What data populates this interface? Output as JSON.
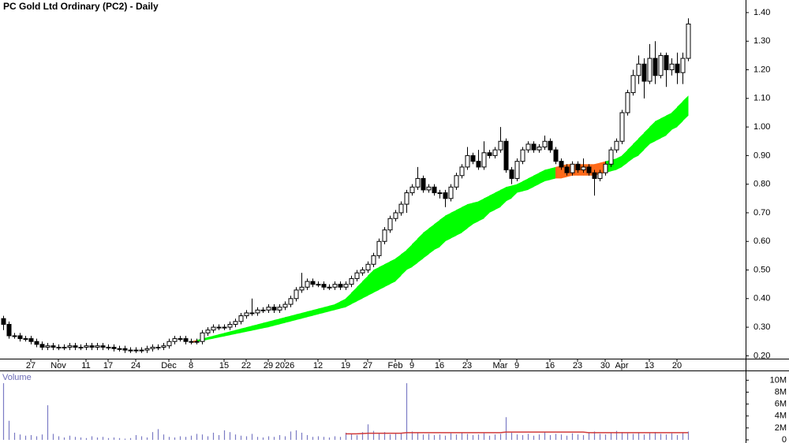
{
  "chart_data": {
    "type": "candlestick",
    "title": "PC Gold Ltd Ordinary (PC2) - Daily",
    "categories": [
      null,
      null,
      null,
      null,
      null,
      "27",
      null,
      null,
      null,
      null,
      "Nov",
      null,
      null,
      null,
      null,
      "11",
      null,
      null,
      null,
      "17",
      null,
      null,
      null,
      null,
      "24",
      null,
      null,
      null,
      null,
      null,
      "Dec",
      null,
      null,
      null,
      "8",
      null,
      null,
      null,
      null,
      null,
      "15",
      null,
      null,
      null,
      "22",
      null,
      null,
      null,
      "29",
      null,
      null,
      "2026",
      null,
      null,
      null,
      null,
      null,
      "12",
      null,
      null,
      null,
      null,
      "19",
      null,
      null,
      null,
      "27",
      null,
      null,
      null,
      null,
      "Feb",
      null,
      null,
      "9",
      null,
      null,
      null,
      null,
      "16",
      null,
      null,
      null,
      null,
      "23",
      null,
      null,
      null,
      null,
      null,
      "Mar",
      null,
      null,
      "9",
      null,
      null,
      null,
      null,
      null,
      "16",
      null,
      null,
      null,
      null,
      "23",
      null,
      null,
      null,
      null,
      "30",
      null,
      null,
      "Apr",
      null,
      null,
      null,
      null,
      "13",
      null,
      null,
      null,
      null,
      "20",
      null,
      null
    ],
    "open": [
      0.33,
      0.31,
      0.27,
      0.27,
      0.26,
      0.26,
      0.25,
      0.24,
      0.23,
      0.235,
      0.23,
      0.23,
      0.23,
      0.235,
      0.23,
      0.23,
      0.235,
      0.23,
      0.235,
      0.23,
      0.23,
      0.225,
      0.225,
      0.22,
      0.22,
      0.22,
      0.22,
      0.225,
      0.23,
      0.23,
      0.235,
      0.25,
      0.26,
      0.26,
      0.25,
      0.25,
      0.25,
      0.28,
      0.29,
      0.3,
      0.3,
      0.3,
      0.31,
      0.32,
      0.34,
      0.35,
      0.35,
      0.36,
      0.36,
      0.37,
      0.36,
      0.37,
      0.38,
      0.4,
      0.43,
      0.44,
      0.46,
      0.45,
      0.45,
      0.44,
      0.44,
      0.45,
      0.44,
      0.45,
      0.47,
      0.49,
      0.5,
      0.52,
      0.55,
      0.6,
      0.64,
      0.68,
      0.7,
      0.73,
      0.77,
      0.79,
      0.82,
      0.78,
      0.79,
      0.77,
      0.77,
      0.75,
      0.79,
      0.83,
      0.86,
      0.9,
      0.88,
      0.86,
      0.91,
      0.9,
      0.92,
      0.95,
      0.85,
      0.82,
      0.88,
      0.92,
      0.94,
      0.92,
      0.93,
      0.95,
      0.92,
      0.88,
      0.86,
      0.84,
      0.87,
      0.85,
      0.86,
      0.84,
      0.82,
      0.84,
      0.87,
      0.92,
      0.95,
      1.05,
      1.12,
      1.18,
      1.22,
      1.16,
      1.24,
      1.18,
      1.25,
      1.2,
      1.22,
      1.19,
      1.24
    ],
    "high": [
      0.34,
      0.32,
      0.28,
      0.28,
      0.27,
      0.27,
      0.26,
      0.25,
      0.245,
      0.245,
      0.24,
      0.24,
      0.245,
      0.245,
      0.24,
      0.245,
      0.245,
      0.245,
      0.245,
      0.24,
      0.24,
      0.235,
      0.235,
      0.23,
      0.23,
      0.23,
      0.235,
      0.24,
      0.24,
      0.245,
      0.26,
      0.27,
      0.27,
      0.27,
      0.26,
      0.26,
      0.29,
      0.3,
      0.31,
      0.31,
      0.31,
      0.32,
      0.33,
      0.35,
      0.36,
      0.4,
      0.37,
      0.37,
      0.38,
      0.38,
      0.38,
      0.39,
      0.41,
      0.44,
      0.49,
      0.47,
      0.47,
      0.46,
      0.46,
      0.45,
      0.46,
      0.46,
      0.46,
      0.48,
      0.5,
      0.51,
      0.53,
      0.56,
      0.61,
      0.65,
      0.69,
      0.71,
      0.74,
      0.78,
      0.8,
      0.86,
      0.83,
      0.8,
      0.8,
      0.78,
      0.78,
      0.8,
      0.84,
      0.87,
      0.93,
      0.91,
      0.92,
      0.95,
      0.92,
      0.93,
      1.0,
      0.96,
      0.86,
      0.89,
      0.93,
      0.95,
      0.95,
      0.94,
      0.97,
      0.96,
      0.93,
      0.89,
      0.87,
      0.88,
      0.88,
      0.89,
      0.87,
      0.85,
      0.85,
      0.88,
      0.93,
      0.96,
      1.06,
      1.13,
      1.2,
      1.25,
      1.24,
      1.29,
      1.3,
      1.26,
      1.26,
      1.24,
      1.26,
      1.26,
      1.38
    ],
    "low": [
      0.29,
      0.26,
      0.26,
      0.25,
      0.25,
      0.24,
      0.23,
      0.22,
      0.22,
      0.22,
      0.22,
      0.22,
      0.22,
      0.22,
      0.22,
      0.22,
      0.22,
      0.22,
      0.22,
      0.22,
      0.215,
      0.215,
      0.21,
      0.21,
      0.21,
      0.21,
      0.21,
      0.215,
      0.22,
      0.22,
      0.225,
      0.24,
      0.25,
      0.24,
      0.24,
      0.24,
      0.24,
      0.27,
      0.28,
      0.29,
      0.29,
      0.29,
      0.3,
      0.31,
      0.33,
      0.34,
      0.34,
      0.35,
      0.35,
      0.35,
      0.35,
      0.36,
      0.37,
      0.39,
      0.42,
      0.43,
      0.44,
      0.44,
      0.43,
      0.43,
      0.43,
      0.43,
      0.43,
      0.44,
      0.46,
      0.48,
      0.49,
      0.51,
      0.54,
      0.59,
      0.63,
      0.67,
      0.69,
      0.7,
      0.76,
      0.78,
      0.77,
      0.77,
      0.76,
      0.75,
      0.72,
      0.74,
      0.78,
      0.82,
      0.85,
      0.87,
      0.85,
      0.85,
      0.89,
      0.89,
      0.91,
      0.84,
      0.8,
      0.81,
      0.87,
      0.91,
      0.91,
      0.91,
      0.92,
      0.91,
      0.87,
      0.85,
      0.83,
      0.83,
      0.84,
      0.84,
      0.83,
      0.76,
      0.81,
      0.83,
      0.86,
      0.91,
      0.94,
      1.04,
      1.11,
      1.15,
      1.1,
      1.15,
      1.15,
      1.17,
      1.14,
      1.18,
      1.15,
      1.15,
      1.23
    ],
    "close": [
      0.31,
      0.27,
      0.27,
      0.26,
      0.26,
      0.25,
      0.24,
      0.23,
      0.235,
      0.23,
      0.23,
      0.23,
      0.235,
      0.23,
      0.23,
      0.235,
      0.23,
      0.235,
      0.23,
      0.23,
      0.225,
      0.225,
      0.22,
      0.22,
      0.22,
      0.22,
      0.225,
      0.23,
      0.23,
      0.235,
      0.25,
      0.26,
      0.26,
      0.25,
      0.25,
      0.25,
      0.28,
      0.29,
      0.3,
      0.3,
      0.3,
      0.31,
      0.32,
      0.34,
      0.35,
      0.35,
      0.36,
      0.36,
      0.37,
      0.36,
      0.37,
      0.38,
      0.4,
      0.43,
      0.44,
      0.46,
      0.45,
      0.45,
      0.44,
      0.44,
      0.45,
      0.44,
      0.45,
      0.47,
      0.49,
      0.5,
      0.52,
      0.55,
      0.6,
      0.64,
      0.68,
      0.7,
      0.73,
      0.77,
      0.79,
      0.82,
      0.78,
      0.79,
      0.77,
      0.77,
      0.75,
      0.79,
      0.83,
      0.86,
      0.9,
      0.88,
      0.86,
      0.91,
      0.9,
      0.92,
      0.95,
      0.85,
      0.82,
      0.88,
      0.92,
      0.94,
      0.92,
      0.93,
      0.95,
      0.92,
      0.88,
      0.86,
      0.84,
      0.87,
      0.85,
      0.86,
      0.84,
      0.82,
      0.84,
      0.87,
      0.92,
      0.95,
      1.05,
      1.12,
      1.18,
      1.22,
      1.16,
      1.24,
      1.18,
      1.25,
      1.2,
      1.22,
      1.19,
      1.24,
      1.36
    ],
    "up_color": "#ffffff",
    "down_color": "#000000",
    "band_upper": [
      null,
      null,
      null,
      null,
      null,
      null,
      null,
      null,
      null,
      null,
      null,
      null,
      null,
      null,
      null,
      null,
      null,
      null,
      null,
      null,
      null,
      null,
      null,
      null,
      null,
      null,
      null,
      null,
      null,
      null,
      null,
      null,
      null,
      null,
      0.25,
      0.255,
      0.26,
      0.265,
      0.27,
      0.275,
      0.28,
      0.285,
      0.29,
      0.295,
      0.3,
      0.305,
      0.31,
      0.315,
      0.32,
      0.325,
      0.33,
      0.335,
      0.34,
      0.345,
      0.35,
      0.355,
      0.36,
      0.365,
      0.37,
      0.375,
      0.38,
      0.39,
      0.4,
      0.42,
      0.44,
      0.46,
      0.48,
      0.5,
      0.51,
      0.52,
      0.53,
      0.54,
      0.555,
      0.57,
      0.59,
      0.61,
      0.63,
      0.645,
      0.66,
      0.675,
      0.69,
      0.7,
      0.71,
      0.72,
      0.73,
      0.735,
      0.74,
      0.75,
      0.76,
      0.77,
      0.78,
      0.79,
      0.795,
      0.8,
      0.81,
      0.82,
      0.83,
      0.84,
      0.85,
      0.855,
      0.86,
      0.865,
      0.87,
      0.87,
      0.87,
      0.87,
      0.87,
      0.87,
      0.875,
      0.88,
      0.885,
      0.89,
      0.9,
      0.92,
      0.94,
      0.96,
      0.98,
      1.0,
      1.02,
      1.03,
      1.04,
      1.05,
      1.07,
      1.09,
      1.11
    ],
    "band_lower": [
      null,
      null,
      null,
      null,
      null,
      null,
      null,
      null,
      null,
      null,
      null,
      null,
      null,
      null,
      null,
      null,
      null,
      null,
      null,
      null,
      null,
      null,
      null,
      null,
      null,
      null,
      null,
      null,
      null,
      null,
      null,
      null,
      null,
      null,
      0.245,
      0.248,
      0.252,
      0.256,
      0.26,
      0.264,
      0.268,
      0.272,
      0.276,
      0.28,
      0.284,
      0.288,
      0.292,
      0.296,
      0.3,
      0.305,
      0.31,
      0.315,
      0.32,
      0.325,
      0.33,
      0.335,
      0.34,
      0.345,
      0.35,
      0.355,
      0.36,
      0.365,
      0.37,
      0.38,
      0.39,
      0.4,
      0.41,
      0.42,
      0.43,
      0.44,
      0.45,
      0.46,
      0.48,
      0.5,
      0.51,
      0.525,
      0.54,
      0.555,
      0.57,
      0.58,
      0.6,
      0.61,
      0.62,
      0.63,
      0.645,
      0.66,
      0.67,
      0.68,
      0.7,
      0.71,
      0.72,
      0.74,
      0.75,
      0.77,
      0.775,
      0.78,
      0.79,
      0.8,
      0.81,
      0.815,
      0.82,
      0.82,
      0.825,
      0.83,
      0.83,
      0.83,
      0.83,
      0.83,
      0.835,
      0.84,
      0.845,
      0.85,
      0.86,
      0.875,
      0.89,
      0.9,
      0.92,
      0.94,
      0.95,
      0.96,
      0.97,
      0.99,
      1.0,
      1.02,
      1.04
    ],
    "band_color": "#00ff00",
    "band_warning_color": "#ff6a1a",
    "ylim": [
      0.19,
      1.444
    ],
    "yticks": [
      {
        "value": 0.2,
        "label": "0.20"
      },
      {
        "value": 0.3,
        "label": "0.30"
      },
      {
        "value": 0.4,
        "label": "0.40"
      },
      {
        "value": 0.5,
        "label": "0.50"
      },
      {
        "value": 0.6,
        "label": "0.60"
      },
      {
        "value": 0.7,
        "label": "0.70"
      },
      {
        "value": 0.8,
        "label": "0.80"
      },
      {
        "value": 0.9,
        "label": "0.90"
      },
      {
        "value": 1.0,
        "label": "1.00"
      },
      {
        "value": 1.1,
        "label": "1.10"
      },
      {
        "value": 1.2,
        "label": "1.20"
      },
      {
        "value": 1.3,
        "label": "1.30"
      },
      {
        "value": 1.4,
        "label": "1.40"
      }
    ],
    "volume": {
      "title": "Volume",
      "color": "#7b7bc4",
      "values": [
        9.5,
        3.2,
        1.2,
        0.9,
        0.7,
        0.8,
        0.6,
        0.9,
        5.8,
        1.0,
        0.6,
        0.4,
        0.7,
        0.5,
        0.4,
        0.3,
        0.6,
        0.4,
        0.5,
        0.3,
        0.4,
        0.3,
        0.2,
        0.3,
        0.8,
        0.6,
        0.4,
        1.3,
        1.8,
        0.9,
        0.5,
        0.4,
        0.6,
        0.5,
        0.7,
        1.0,
        0.9,
        0.6,
        1.2,
        0.8,
        1.6,
        1.3,
        0.9,
        0.7,
        0.6,
        1.0,
        0.5,
        0.4,
        0.6,
        0.5,
        0.8,
        0.6,
        1.4,
        1.6,
        1.2,
        0.8,
        0.5,
        0.6,
        0.5,
        0.4,
        0.6,
        0.5,
        1.2,
        1.0,
        0.8,
        1.3,
        2.6,
        1.5,
        1.1,
        1.3,
        0.9,
        1.0,
        1.2,
        9.5,
        1.4,
        1.2,
        0.9,
        1.0,
        0.8,
        0.9,
        0.7,
        1.1,
        0.9,
        1.2,
        1.0,
        0.8,
        0.9,
        1.1,
        0.7,
        0.9,
        1.0,
        3.8,
        1.2,
        0.9,
        0.8,
        1.0,
        0.7,
        0.9,
        1.3,
        0.8,
        1.0,
        0.9,
        0.7,
        1.1,
        0.9,
        0.8,
        1.2,
        1.4,
        1.0,
        0.9,
        1.2,
        1.5,
        1.3,
        1.1,
        1.0,
        1.2,
        0.9,
        1.1,
        1.3,
        1.0,
        0.9,
        1.1,
        0.8,
        1.2,
        1.4
      ],
      "ma": [
        null,
        null,
        null,
        null,
        null,
        null,
        null,
        null,
        null,
        null,
        null,
        null,
        null,
        null,
        null,
        null,
        null,
        null,
        null,
        null,
        null,
        null,
        null,
        null,
        null,
        null,
        null,
        null,
        null,
        null,
        null,
        null,
        null,
        null,
        null,
        null,
        null,
        null,
        null,
        null,
        null,
        null,
        null,
        null,
        null,
        null,
        null,
        null,
        null,
        null,
        null,
        null,
        null,
        null,
        null,
        null,
        null,
        null,
        null,
        null,
        null,
        null,
        1.0,
        1.0,
        1.0,
        1.05,
        1.1,
        1.1,
        1.1,
        1.1,
        1.1,
        1.1,
        1.1,
        1.2,
        1.2,
        1.2,
        1.2,
        1.2,
        1.2,
        1.2,
        1.2,
        1.2,
        1.2,
        1.2,
        1.2,
        1.2,
        1.2,
        1.2,
        1.2,
        1.2,
        1.2,
        1.3,
        1.3,
        1.3,
        1.3,
        1.3,
        1.3,
        1.3,
        1.3,
        1.3,
        1.3,
        1.3,
        1.3,
        1.3,
        1.3,
        1.3,
        1.2,
        1.2,
        1.2,
        1.2,
        1.2,
        1.2,
        1.2,
        1.2,
        1.2,
        1.2,
        1.2,
        1.2,
        1.2,
        1.2,
        1.2,
        1.2,
        1.2,
        1.2,
        1.2
      ],
      "ma_color": "#d03a3a",
      "ylim": [
        0,
        11.5
      ],
      "yticks": [
        0,
        {
          "value": 2,
          "label": "2M"
        },
        {
          "value": 4,
          "label": "4M"
        },
        {
          "value": 6,
          "label": "6M"
        },
        {
          "value": 8,
          "label": "8M"
        },
        {
          "value": 10,
          "label": "10M"
        }
      ]
    }
  }
}
